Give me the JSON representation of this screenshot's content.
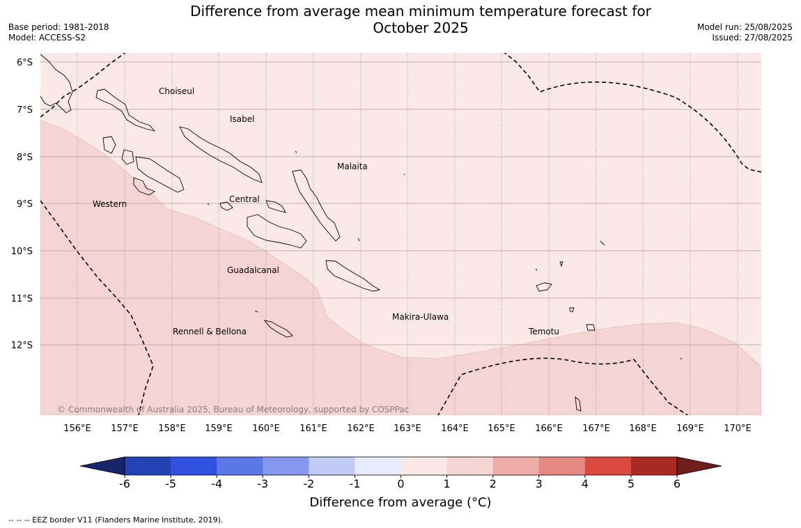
{
  "header": {
    "title_line1": "Difference from average mean minimum temperature forecast for",
    "title_line2": "October 2025",
    "base_period": "Base period: 1981-2018",
    "model": "Model: ACCESS-S2",
    "model_run": "Model run: 25/08/2025",
    "issued": "Issued: 27/08/2025"
  },
  "map": {
    "lon_ticks": [
      "156°E",
      "157°E",
      "158°E",
      "159°E",
      "160°E",
      "161°E",
      "162°E",
      "163°E",
      "164°E",
      "165°E",
      "166°E",
      "167°E",
      "168°E",
      "169°E",
      "170°E"
    ],
    "lat_ticks": [
      "6°S",
      "7°S",
      "8°S",
      "9°S",
      "10°S",
      "11°S",
      "12°S"
    ],
    "region_labels": [
      "Choiseul",
      "Isabel",
      "Malaita",
      "Western",
      "Central",
      "Guadalcanal",
      "Makira-Ulawa",
      "Rennell & Bellona",
      "Temotu"
    ],
    "copyright": "© Commonwealth of Australia 2025, Bureau of Meteorology, supported by COSPPac",
    "anomaly_band_colors": {
      "0 to 1": "#fbe9e7",
      "1 to 2": "#f5d5d3"
    }
  },
  "legend": {
    "title": "Difference from average (°C)",
    "ticks": [
      "-6",
      "-5",
      "-4",
      "-3",
      "-2",
      "-1",
      "0",
      "1",
      "2",
      "3",
      "4",
      "5",
      "6"
    ],
    "colors": [
      "#15246b",
      "#2443b3",
      "#3250df",
      "#5b78e6",
      "#8598ee",
      "#c2cbf4",
      "#e8ebfb",
      "#fbe9e7",
      "#f5d5d3",
      "#efadaa",
      "#e68882",
      "#da4a40",
      "#a92a25",
      "#6e1f1b"
    ]
  },
  "footnote": "--  --  -- EEZ border V11 (Flanders Marine Institute, 2019)."
}
